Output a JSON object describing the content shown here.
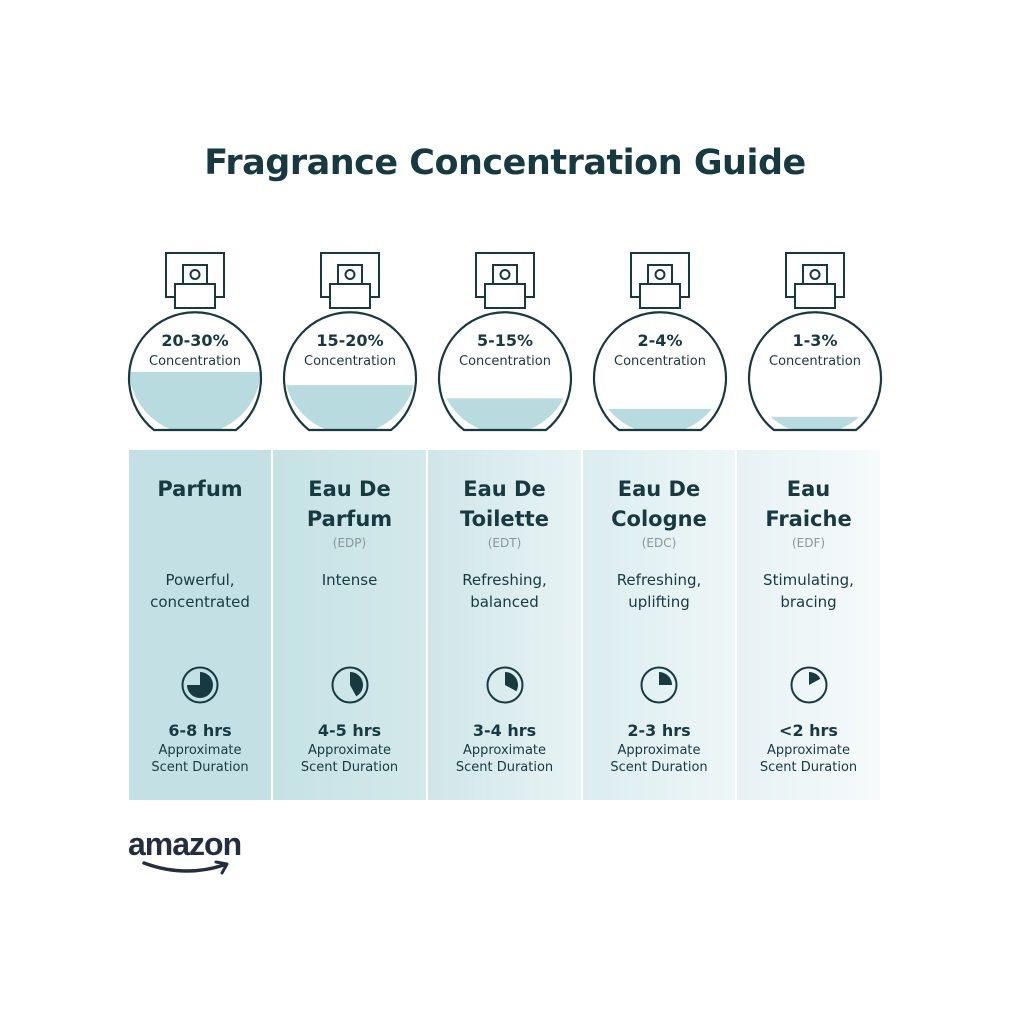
{
  "title": "Fragrance Concentration Guide",
  "colors": {
    "text": "#173a40",
    "liquid": "#b7dbdf",
    "muted": "#8a9599"
  },
  "items": [
    {
      "concentration": "20-30%",
      "concentration_label": "Concentration",
      "fill_level": 0.44,
      "name_lines": [
        "Parfum",
        ""
      ],
      "abbr": "",
      "description_lines": [
        "Powerful,",
        "concentrated"
      ],
      "duration": "6-8 hrs",
      "duration_fraction": 0.75,
      "duration_label_lines": [
        "Approximate",
        "Scent Duration"
      ]
    },
    {
      "concentration": "15-20%",
      "concentration_label": "Concentration",
      "fill_level": 0.34,
      "name_lines": [
        "Eau De",
        "Parfum"
      ],
      "abbr": "(EDP)",
      "description_lines": [
        "Intense",
        ""
      ],
      "duration": "4-5 hrs",
      "duration_fraction": 0.42,
      "duration_label_lines": [
        "Approximate",
        "Scent Duration"
      ]
    },
    {
      "concentration": "5-15%",
      "concentration_label": "Concentration",
      "fill_level": 0.24,
      "name_lines": [
        "Eau De",
        "Toilette"
      ],
      "abbr": "(EDT)",
      "description_lines": [
        "Refreshing,",
        "balanced"
      ],
      "duration": "3-4 hrs",
      "duration_fraction": 0.33,
      "duration_label_lines": [
        "Approximate",
        "Scent Duration"
      ]
    },
    {
      "concentration": "2-4%",
      "concentration_label": "Concentration",
      "fill_level": 0.16,
      "name_lines": [
        "Eau De",
        "Cologne"
      ],
      "abbr": "(EDC)",
      "description_lines": [
        "Refreshing,",
        "uplifting"
      ],
      "duration": "2-3 hrs",
      "duration_fraction": 0.25,
      "duration_label_lines": [
        "Approximate",
        "Scent Duration"
      ]
    },
    {
      "concentration": "1-3%",
      "concentration_label": "Concentration",
      "fill_level": 0.1,
      "name_lines": [
        "Eau",
        "Fraiche"
      ],
      "abbr": "(EDF)",
      "description_lines": [
        "Stimulating,",
        "bracing"
      ],
      "duration": "<2 hrs",
      "duration_fraction": 0.17,
      "duration_label_lines": [
        "Approximate",
        "Scent Duration"
      ]
    }
  ],
  "logo": {
    "text": "amazon"
  }
}
